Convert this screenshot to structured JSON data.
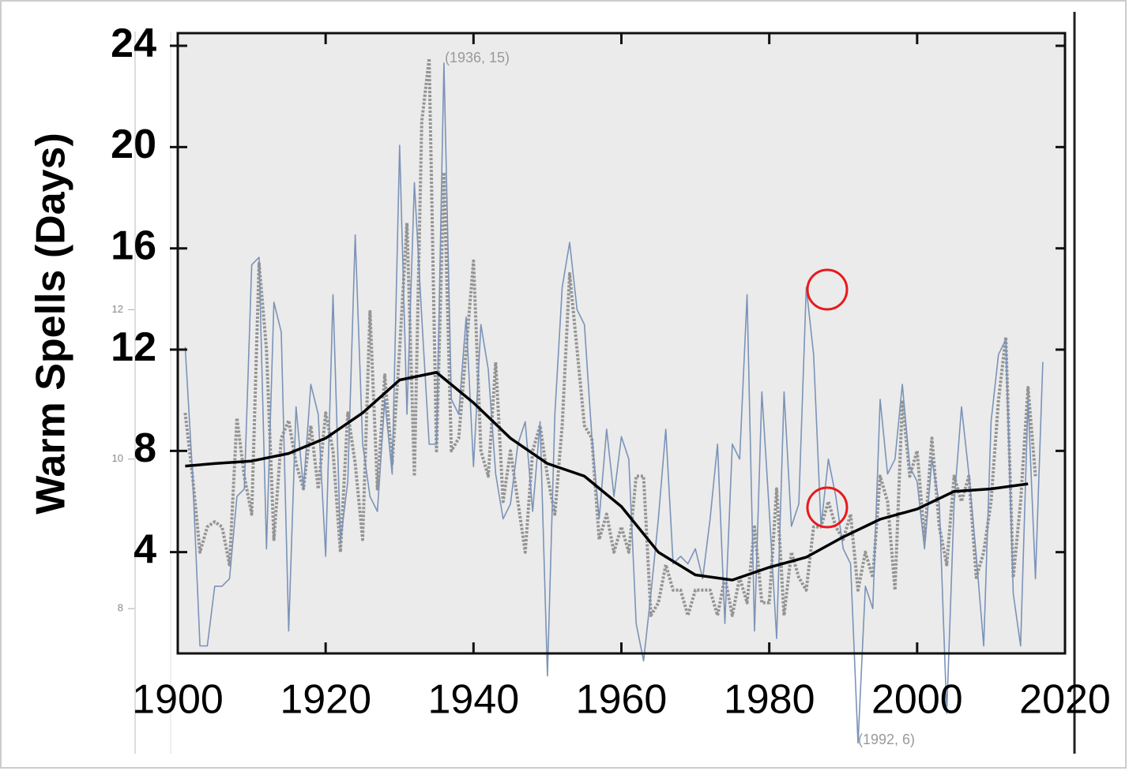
{
  "chart_data": {
    "type": "line",
    "ylabel": "Warm Spells (Days)",
    "xlim": [
      1900,
      2020
    ],
    "xticks": [
      1900,
      1920,
      1940,
      1960,
      1980,
      2000,
      2020
    ],
    "ylim": [
      0,
      24.5
    ],
    "yticks": [
      4,
      8,
      12,
      16,
      20,
      24
    ],
    "y2lim": [
      7.4,
      15.7
    ],
    "y2ticks": [
      8,
      10,
      12
    ],
    "annotations": [
      "(1936, 15)",
      "(1992, 6)"
    ],
    "series": [
      {
        "name": "annual-gray",
        "color": "#858585",
        "x": [
          1901,
          1902,
          1903,
          1904,
          1905,
          1906,
          1907,
          1908,
          1909,
          1910,
          1911,
          1912,
          1913,
          1914,
          1915,
          1916,
          1917,
          1918,
          1919,
          1920,
          1921,
          1922,
          1923,
          1924,
          1925,
          1926,
          1927,
          1928,
          1929,
          1930,
          1931,
          1932,
          1933,
          1934,
          1935,
          1936,
          1937,
          1938,
          1939,
          1940,
          1941,
          1942,
          1943,
          1944,
          1945,
          1946,
          1947,
          1948,
          1949,
          1950,
          1951,
          1952,
          1953,
          1954,
          1955,
          1956,
          1957,
          1958,
          1959,
          1960,
          1961,
          1962,
          1963,
          1964,
          1965,
          1966,
          1967,
          1968,
          1969,
          1970,
          1971,
          1972,
          1973,
          1974,
          1975,
          1976,
          1977,
          1978,
          1979,
          1980,
          1981,
          1982,
          1983,
          1984,
          1985,
          1986,
          1987,
          1988,
          1989,
          1990,
          1991,
          1992,
          1993,
          1994,
          1995,
          1996,
          1997,
          1998,
          1999,
          2000,
          2001,
          2002,
          2003,
          2004,
          2005,
          2006,
          2007,
          2008,
          2009,
          2010,
          2011,
          2012,
          2013,
          2014,
          2015,
          2016
        ],
        "values": [
          9.5,
          7,
          4,
          5,
          5.2,
          5,
          3.5,
          9.3,
          7,
          5.5,
          15.4,
          12,
          4.5,
          8.5,
          9.2,
          7.5,
          6.5,
          9,
          6.5,
          9.5,
          8,
          4,
          9.5,
          7.5,
          4.5,
          13.5,
          6.5,
          11,
          7.5,
          12,
          17,
          7,
          21,
          23.5,
          8,
          19,
          8,
          8.5,
          12,
          15.5,
          8,
          7,
          11.5,
          6,
          8,
          6,
          4,
          8,
          9,
          7,
          5.5,
          9,
          15,
          12,
          9,
          8.5,
          4.5,
          5.5,
          4,
          5,
          4,
          7,
          7,
          1.5,
          2,
          3.5,
          2.5,
          2.5,
          1.5,
          2.5,
          2.5,
          2.5,
          1.5,
          3,
          1.5,
          3,
          2,
          5,
          2,
          2,
          6.5,
          1.5,
          4,
          3,
          2.5,
          5,
          5,
          6,
          5,
          4.5,
          5.5,
          2.5,
          4,
          3,
          7,
          6,
          2.5,
          10,
          7,
          8,
          4.5,
          8.5,
          5,
          3.5,
          7,
          6,
          7,
          3,
          4,
          6,
          10,
          12.5,
          3,
          6,
          10.5,
          7
        ]
      },
      {
        "name": "annual-blue",
        "color": "#7b93b8",
        "axis": "y2",
        "x": [
          1901,
          1902,
          1903,
          1904,
          1905,
          1906,
          1907,
          1908,
          1909,
          1910,
          1911,
          1912,
          1913,
          1914,
          1915,
          1916,
          1917,
          1918,
          1919,
          1920,
          1921,
          1922,
          1923,
          1924,
          1925,
          1926,
          1927,
          1928,
          1929,
          1930,
          1931,
          1932,
          1933,
          1934,
          1935,
          1936,
          1937,
          1938,
          1939,
          1940,
          1941,
          1942,
          1943,
          1944,
          1945,
          1946,
          1947,
          1948,
          1949,
          1950,
          1951,
          1952,
          1953,
          1954,
          1955,
          1956,
          1957,
          1958,
          1959,
          1960,
          1961,
          1962,
          1963,
          1964,
          1965,
          1966,
          1967,
          1968,
          1969,
          1970,
          1971,
          1972,
          1973,
          1974,
          1975,
          1976,
          1977,
          1978,
          1979,
          1980,
          1981,
          1982,
          1983,
          1984,
          1985,
          1986,
          1987,
          1988,
          1989,
          1990,
          1991,
          1992,
          1993,
          1994,
          1995,
          1996,
          1997,
          1998,
          1999,
          2000,
          2001,
          2002,
          2003,
          2004,
          2005,
          2006,
          2007,
          2008,
          2009,
          2010,
          2011,
          2012,
          2013,
          2014,
          2015,
          2016,
          2017
        ],
        "values": [
          11.5,
          9.8,
          7.5,
          7.5,
          8.3,
          8.3,
          8.4,
          9.5,
          9.6,
          12.6,
          12.7,
          8.8,
          12.1,
          11.7,
          7.7,
          10.7,
          9.6,
          11,
          10.6,
          8.7,
          12.2,
          8.9,
          9.7,
          13,
          10.2,
          9.5,
          9.3,
          10.8,
          9.8,
          14.2,
          10.6,
          13.7,
          11.9,
          10.2,
          10.2,
          15.3,
          10.8,
          10.6,
          11.9,
          9.9,
          11.8,
          11.2,
          9.8,
          9.2,
          9.4,
          10.2,
          10.5,
          9.3,
          10.5,
          7.1,
          10.6,
          12.3,
          12.9,
          12,
          11.8,
          10.3,
          9.2,
          10.4,
          9.5,
          10.3,
          10,
          7.8,
          7.3,
          8.2,
          9.2,
          10.4,
          8.6,
          8.7,
          8.6,
          8.8,
          8.4,
          9.2,
          10.2,
          7.8,
          10.2,
          10,
          12.2,
          7.7,
          10.9,
          9.3,
          7.6,
          10.9,
          9.1,
          9.4,
          12.3,
          11.4,
          9.1,
          10,
          9.5,
          8.8,
          8.6,
          6.2,
          8.3,
          8,
          10.8,
          9.8,
          10,
          11,
          9.9,
          9.7,
          8.8,
          10,
          9.4,
          6.6,
          9.4,
          10.7,
          9.8,
          8.7,
          7.5,
          10.5,
          11.4,
          11.6,
          8.2,
          7.5,
          10.8,
          8.4,
          11.3
        ]
      },
      {
        "name": "smoothed",
        "color": "#000000",
        "x": [
          1901,
          1905,
          1910,
          1915,
          1920,
          1925,
          1930,
          1935,
          1940,
          1945,
          1950,
          1955,
          1960,
          1965,
          1970,
          1975,
          1980,
          1985,
          1990,
          1995,
          2000,
          2005,
          2010,
          2015
        ],
        "values": [
          7.4,
          7.5,
          7.6,
          7.9,
          8.5,
          9.5,
          10.8,
          11.1,
          9.9,
          8.5,
          7.5,
          7.0,
          5.8,
          4.0,
          3.1,
          2.9,
          3.4,
          3.8,
          4.6,
          5.3,
          5.7,
          6.4,
          6.5,
          6.7
        ]
      }
    ]
  }
}
